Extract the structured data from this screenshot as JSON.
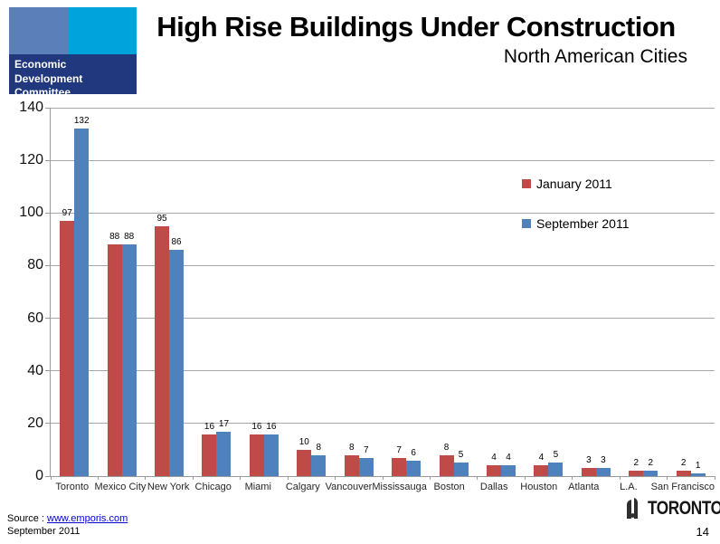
{
  "header": {
    "logo": {
      "line1": "Economic Development",
      "line2": "Committee",
      "colors": {
        "square_left": "#5b80b9",
        "square_right": "#00a3dc",
        "band": "#21387e"
      }
    },
    "title": "High Rise Buildings Under Construction",
    "subtitle": "North American Cities"
  },
  "chart_data": {
    "type": "bar",
    "title": "High Rise Buildings Under Construction",
    "xlabel": "",
    "ylabel": "",
    "categories": [
      "Toronto",
      "Mexico City",
      "New York",
      "Chicago",
      "Miami",
      "Calgary",
      "Vancouver",
      "Mississauga",
      "Boston",
      "Dallas",
      "Houston",
      "Atlanta",
      "L.A.",
      "San Francisco"
    ],
    "series": [
      {
        "name": "January 2011",
        "color": "#be4b48",
        "values": [
          97,
          88,
          95,
          16,
          16,
          10,
          8,
          7,
          8,
          4,
          4,
          3,
          2,
          2
        ]
      },
      {
        "name": "September 2011",
        "color": "#4f81bd",
        "values": [
          132,
          88,
          86,
          17,
          16,
          8,
          7,
          6,
          5,
          4,
          5,
          3,
          2,
          1
        ]
      }
    ],
    "ylim": [
      0,
      140
    ],
    "ytick_step": 20,
    "grid": true,
    "data_labels": true,
    "legend_position": "inside-right"
  },
  "footer": {
    "source_label": "Source : ",
    "source_link": "www.emporis.com",
    "date": "September 2011",
    "toronto_wordmark": "TORONTO",
    "page_number": "14"
  }
}
